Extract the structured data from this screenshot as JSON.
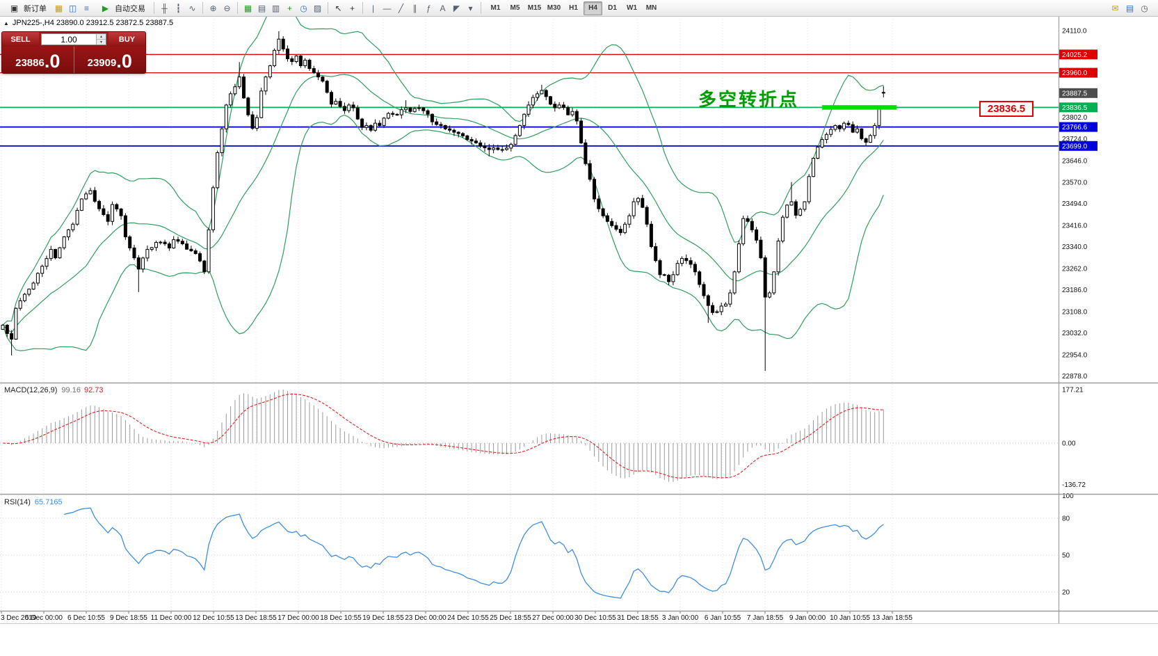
{
  "toolbar": {
    "new_order": "新订单",
    "autotrading": "自动交易",
    "timeframes": [
      "M1",
      "M5",
      "M15",
      "M30",
      "H1",
      "H4",
      "D1",
      "W1",
      "MN"
    ],
    "active_timeframe": "H4",
    "icons": {
      "new_order": "▣",
      "new_chart": "▦",
      "profiles": "◫",
      "market_watch": "≡",
      "autotrading_play": "▶",
      "chart_bars": "╫",
      "chart_candles": "┇",
      "chart_line": "∿",
      "zoom_in": "⊕",
      "zoom_out": "⊖",
      "auto_arrange": "▦",
      "tile_windows": "▤",
      "cascade": "▥",
      "indicators": "+",
      "periods": "◷",
      "templates": "▨",
      "cursor": "↖",
      "crosshair": "+",
      "vline": "|",
      "hline": "—",
      "trendline": "╱",
      "channel": "∥",
      "fibonacci": "ƒ",
      "text": "A",
      "arrows": "◤",
      "dropdown": "▾",
      "mail": "✉",
      "layout": "▤",
      "clock": "◷"
    }
  },
  "symbol_bar": {
    "collapse_icon": "▲",
    "text": "JPN225-,H4  23890.0 23912.5 23872.5 23887.5"
  },
  "trade_panel": {
    "sell_label": "SELL",
    "buy_label": "BUY",
    "volume": "1.00",
    "spin_up": "▴",
    "spin_down": "▾",
    "sell_int": "23886",
    "sell_frac": ".0",
    "buy_int": "23909",
    "buy_frac": ".0"
  },
  "annotations": {
    "turning_point": "多空转折点",
    "price_callout": "23836.5"
  },
  "macd": {
    "name": "MACD(12,26,9)",
    "value_main": "99.16",
    "value_signal": "92.73",
    "axis_labels": [
      "177.21",
      "0.00",
      "-136.72"
    ],
    "axis_values": [
      177.21,
      0.0,
      -136.72
    ]
  },
  "rsi": {
    "name": "RSI(14)",
    "value": "65.7165",
    "axis_labels": [
      "100",
      "80",
      "50",
      "20"
    ],
    "axis_values": [
      100,
      80,
      50,
      20
    ]
  },
  "price_axis_labels": [
    "24110.0",
    "23802.0",
    "23724.0",
    "23646.0",
    "23570.0",
    "23494.0",
    "23416.0",
    "23340.0",
    "23262.0",
    "23186.0",
    "23108.0",
    "23032.0",
    "22954.0",
    "22878.0"
  ],
  "time_axis_labels": [
    "3 Dec 2019",
    "5 Dec 00:00",
    "6 Dec 10:55",
    "9 Dec 18:55",
    "11 Dec 00:00",
    "12 Dec 10:55",
    "13 Dec 18:55",
    "17 Dec 00:00",
    "18 Dec 10:55",
    "19 Dec 18:55",
    "23 Dec 00:00",
    "24 Dec 10:55",
    "25 Dec 18:55",
    "27 Dec 00:00",
    "30 Dec 10:55",
    "31 Dec 18:55",
    "3 Jan 00:00",
    "6 Jan 10:55",
    "7 Jan 18:55",
    "9 Jan 00:00",
    "10 Jan 10:55",
    "13 Jan 18:55"
  ],
  "chart_data": {
    "type": "candlestick",
    "symbol": "JPN225-",
    "timeframe": "H4",
    "last_candle": {
      "open": 23890.0,
      "high": 23912.5,
      "low": 23872.5,
      "close": 23887.5
    },
    "bid": 23886.0,
    "ask": 23909.0,
    "price_axis_range": [
      22878.0,
      24110.0
    ],
    "levels": [
      {
        "price": 24025.2,
        "label": "24025.2",
        "color": "#dd0000",
        "line": true,
        "width": 1.3
      },
      {
        "price": 23960.0,
        "label": "23960.0",
        "color": "#dd0000",
        "line": true,
        "width": 1.3
      },
      {
        "price": 23887.5,
        "label": "23887.5",
        "color": "#4d4d4d",
        "line": false,
        "width": 1
      },
      {
        "price": 23836.5,
        "label": "23836.5",
        "color": "#00b050",
        "line": true,
        "width": 1.8
      },
      {
        "price": 23766.6,
        "label": "23766.6",
        "color": "#0000dd",
        "line": true,
        "width": 1.8
      },
      {
        "price": 23699.0,
        "label": "23699.0",
        "color": "#0000dd",
        "line": true,
        "width": 1.8
      }
    ],
    "highlight_segment": {
      "price": 23836.5,
      "from_index": 187,
      "to_index": 204,
      "color": "#00dd00"
    },
    "bollinger": {
      "period": 20,
      "deviation": 2,
      "color": "#2e9e5b"
    },
    "candle_count": 202,
    "close_keypoints": [
      [
        0,
        23060
      ],
      [
        1,
        23030
      ],
      [
        2,
        23010
      ],
      [
        3,
        23120
      ],
      [
        5,
        23170
      ],
      [
        7,
        23210
      ],
      [
        9,
        23270
      ],
      [
        11,
        23330
      ],
      [
        12,
        23300
      ],
      [
        14,
        23375
      ],
      [
        16,
        23420
      ],
      [
        18,
        23510
      ],
      [
        20,
        23540
      ],
      [
        22,
        23475
      ],
      [
        24,
        23430
      ],
      [
        25,
        23490
      ],
      [
        27,
        23450
      ],
      [
        28,
        23375
      ],
      [
        30,
        23300
      ],
      [
        31,
        23260
      ],
      [
        33,
        23330
      ],
      [
        35,
        23355
      ],
      [
        37,
        23350
      ],
      [
        38,
        23335
      ],
      [
        39,
        23365
      ],
      [
        41,
        23350
      ],
      [
        43,
        23325
      ],
      [
        44,
        23315
      ],
      [
        46,
        23250
      ],
      [
        47,
        23400
      ],
      [
        48,
        23550
      ],
      [
        49,
        23675
      ],
      [
        50,
        23760
      ],
      [
        51,
        23845
      ],
      [
        52,
        23885
      ],
      [
        53,
        23910
      ],
      [
        54,
        23945
      ],
      [
        55,
        23870
      ],
      [
        56,
        23810
      ],
      [
        57,
        23762
      ],
      [
        58,
        23800
      ],
      [
        59,
        23895
      ],
      [
        60,
        23945
      ],
      [
        61,
        23985
      ],
      [
        62,
        24040
      ],
      [
        63,
        24080
      ],
      [
        64,
        24045
      ],
      [
        65,
        24010
      ],
      [
        66,
        24000
      ],
      [
        67,
        24020
      ],
      [
        68,
        23985
      ],
      [
        69,
        24005
      ],
      [
        70,
        23975
      ],
      [
        71,
        23960
      ],
      [
        72,
        23945
      ],
      [
        73,
        23930
      ],
      [
        74,
        23890
      ],
      [
        75,
        23848
      ],
      [
        76,
        23858
      ],
      [
        77,
        23840
      ],
      [
        78,
        23825
      ],
      [
        79,
        23845
      ],
      [
        80,
        23835
      ],
      [
        81,
        23795
      ],
      [
        82,
        23765
      ],
      [
        83,
        23772
      ],
      [
        84,
        23755
      ],
      [
        85,
        23780
      ],
      [
        86,
        23772
      ],
      [
        87,
        23798
      ],
      [
        88,
        23815
      ],
      [
        90,
        23810
      ],
      [
        92,
        23835
      ],
      [
        93,
        23822
      ],
      [
        95,
        23835
      ],
      [
        97,
        23812
      ],
      [
        98,
        23785
      ],
      [
        100,
        23772
      ],
      [
        101,
        23760
      ],
      [
        103,
        23748
      ],
      [
        105,
        23735
      ],
      [
        106,
        23722
      ],
      [
        108,
        23710
      ],
      [
        109,
        23698
      ],
      [
        111,
        23686
      ],
      [
        112,
        23692
      ],
      [
        114,
        23686
      ],
      [
        116,
        23705
      ],
      [
        117,
        23736
      ],
      [
        118,
        23772
      ],
      [
        120,
        23845
      ],
      [
        121,
        23872
      ],
      [
        122,
        23885
      ],
      [
        123,
        23897
      ],
      [
        124,
        23875
      ],
      [
        125,
        23848
      ],
      [
        126,
        23835
      ],
      [
        127,
        23845
      ],
      [
        128,
        23836
      ],
      [
        129,
        23810
      ],
      [
        130,
        23822
      ],
      [
        131,
        23788
      ],
      [
        132,
        23710
      ],
      [
        133,
        23636
      ],
      [
        134,
        23580
      ],
      [
        135,
        23510
      ],
      [
        136,
        23475
      ],
      [
        137,
        23450
      ],
      [
        138,
        23430
      ],
      [
        139,
        23415
      ],
      [
        141,
        23390
      ],
      [
        142,
        23420
      ],
      [
        143,
        23450
      ],
      [
        144,
        23500
      ],
      [
        145,
        23512
      ],
      [
        146,
        23480
      ],
      [
        147,
        23420
      ],
      [
        148,
        23340
      ],
      [
        149,
        23290
      ],
      [
        150,
        23240
      ],
      [
        151,
        23238
      ],
      [
        152,
        23215
      ],
      [
        153,
        23240
      ],
      [
        154,
        23280
      ],
      [
        155,
        23298
      ],
      [
        156,
        23290
      ],
      [
        157,
        23277
      ],
      [
        158,
        23250
      ],
      [
        159,
        23205
      ],
      [
        160,
        23165
      ],
      [
        161,
        23130
      ],
      [
        162,
        23105
      ],
      [
        163,
        23108
      ],
      [
        164,
        23128
      ],
      [
        165,
        23135
      ],
      [
        166,
        23175
      ],
      [
        167,
        23250
      ],
      [
        168,
        23350
      ],
      [
        169,
        23440
      ],
      [
        170,
        23430
      ],
      [
        171,
        23400
      ],
      [
        172,
        23363
      ],
      [
        173,
        23300
      ],
      [
        174,
        23160
      ],
      [
        175,
        23175
      ],
      [
        176,
        23250
      ],
      [
        177,
        23360
      ],
      [
        178,
        23445
      ],
      [
        179,
        23488
      ],
      [
        180,
        23500
      ],
      [
        181,
        23452
      ],
      [
        182,
        23473
      ],
      [
        183,
        23500
      ],
      [
        184,
        23590
      ],
      [
        185,
        23655
      ],
      [
        186,
        23695
      ],
      [
        187,
        23722
      ],
      [
        188,
        23740
      ],
      [
        189,
        23758
      ],
      [
        190,
        23772
      ],
      [
        191,
        23760
      ],
      [
        192,
        23780
      ],
      [
        193,
        23775
      ],
      [
        194,
        23748
      ],
      [
        195,
        23760
      ],
      [
        196,
        23725
      ],
      [
        197,
        23712
      ],
      [
        198,
        23736
      ],
      [
        199,
        23772
      ],
      [
        200,
        23838
      ],
      [
        201,
        23887.5
      ]
    ],
    "special_wicks": [
      [
        2,
        null,
        22952
      ],
      [
        31,
        null,
        23178
      ],
      [
        54,
        23998,
        null
      ],
      [
        63,
        24108,
        null
      ],
      [
        92,
        23862,
        null
      ],
      [
        111,
        null,
        23662
      ],
      [
        123,
        23917,
        null
      ],
      [
        161,
        null,
        23068
      ],
      [
        174,
        null,
        22897
      ],
      [
        180,
        23570,
        null
      ],
      [
        201,
        23912.5,
        23872.5
      ]
    ],
    "indicators": [
      {
        "type": "MACD",
        "params": [
          12,
          26,
          9
        ],
        "values": [
          99.16,
          92.73
        ],
        "axis": [
          177.21,
          0.0,
          -136.72
        ]
      },
      {
        "type": "RSI",
        "params": [
          14
        ],
        "value": 65.7165,
        "levels": [
          20,
          50,
          80
        ],
        "range": [
          0,
          100
        ]
      }
    ]
  }
}
